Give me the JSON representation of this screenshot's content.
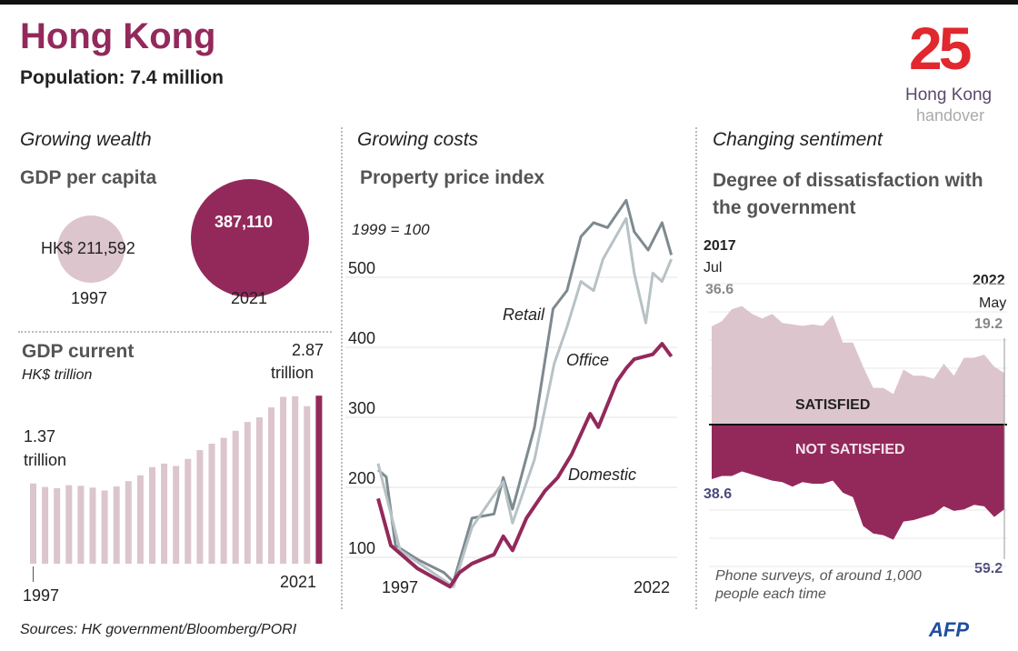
{
  "header": {
    "title": "Hong Kong",
    "subtitle": "Population: 7.4 million"
  },
  "logo": {
    "number": "25",
    "line1": "Hong Kong",
    "line2": "handover",
    "color": "#e0282e"
  },
  "colors": {
    "accent": "#93295b",
    "light": "#dcc5cc",
    "retail": "#7d8a8f",
    "office": "#b7c2c5",
    "sat_label": "#888888",
    "dissat_label": "#4a4a7a"
  },
  "sections": {
    "wealth": "Growing wealth",
    "costs": "Growing costs",
    "sentiment": "Changing sentiment"
  },
  "gdp_per_capita": {
    "heading": "GDP per capita",
    "items": [
      {
        "year": "1997",
        "label": "HK$ 211,592",
        "value": 211592
      },
      {
        "year": "2021",
        "label": "387,110",
        "value": 387110
      }
    ]
  },
  "footer": {
    "sources": "Sources: HK government/Bloomberg/PORI",
    "brand": "AFP"
  },
  "chart_data": [
    {
      "type": "bar",
      "title": "GDP current",
      "subtitle": "HK$ trillion",
      "categories": [
        "1997",
        "1998",
        "1999",
        "2000",
        "2001",
        "2002",
        "2003",
        "2004",
        "2005",
        "2006",
        "2007",
        "2008",
        "2009",
        "2010",
        "2011",
        "2012",
        "2013",
        "2014",
        "2015",
        "2016",
        "2017",
        "2018",
        "2019",
        "2020",
        "2021"
      ],
      "values": [
        1.37,
        1.31,
        1.29,
        1.34,
        1.33,
        1.3,
        1.25,
        1.32,
        1.41,
        1.51,
        1.65,
        1.71,
        1.67,
        1.79,
        1.94,
        2.05,
        2.15,
        2.27,
        2.42,
        2.5,
        2.67,
        2.85,
        2.86,
        2.69,
        2.87
      ],
      "highlight": "2021",
      "annotations": {
        "first_value": "1.37",
        "first_unit": "trillion",
        "last_value": "2.87",
        "last_unit": "trillion"
      },
      "xticks": [
        "1997",
        "2021"
      ],
      "ylim": [
        0,
        3
      ]
    },
    {
      "type": "line",
      "title": "Property price index",
      "note": "1999 = 100",
      "yticks": [
        "100",
        "200",
        "300",
        "400",
        "500"
      ],
      "xticks": [
        "1997",
        "2022"
      ],
      "ylim": [
        0,
        600
      ],
      "grid": true,
      "series": [
        {
          "name": "Retail",
          "points": [
            [
              1997,
              225
            ],
            [
              1997.7,
              215
            ],
            [
              1998.5,
              117
            ],
            [
              2000.4,
              97
            ],
            [
              2002.7,
              78
            ],
            [
              2003.5,
              65
            ],
            [
              2005.1,
              156
            ],
            [
              2007,
              162
            ],
            [
              2007.8,
              214
            ],
            [
              2008.6,
              169
            ],
            [
              2010.5,
              286
            ],
            [
              2012.1,
              455
            ],
            [
              2013.3,
              481
            ],
            [
              2014.5,
              558
            ],
            [
              2015.6,
              578
            ],
            [
              2016.8,
              571
            ],
            [
              2018.4,
              610
            ],
            [
              2019.1,
              565
            ],
            [
              2020.3,
              539
            ],
            [
              2021.5,
              578
            ],
            [
              2022.3,
              532
            ]
          ]
        },
        {
          "name": "Office",
          "points": [
            [
              1997,
              234
            ],
            [
              1998.9,
              110
            ],
            [
              2003.5,
              58
            ],
            [
              2005.1,
              143
            ],
            [
              2007.8,
              208
            ],
            [
              2008.6,
              149
            ],
            [
              2010.5,
              240
            ],
            [
              2012.2,
              377
            ],
            [
              2013.3,
              429
            ],
            [
              2014.5,
              494
            ],
            [
              2015.6,
              481
            ],
            [
              2016.4,
              526
            ],
            [
              2018.4,
              584
            ],
            [
              2019.1,
              506
            ],
            [
              2020.1,
              435
            ],
            [
              2020.7,
              506
            ],
            [
              2021.5,
              494
            ],
            [
              2022.3,
              526
            ]
          ]
        },
        {
          "name": "Domestic",
          "points": [
            [
              1997,
              184
            ],
            [
              1998.1,
              117
            ],
            [
              2000.4,
              84
            ],
            [
              2003.2,
              58
            ],
            [
              2004,
              78
            ],
            [
              2005.1,
              91
            ],
            [
              2007,
              104
            ],
            [
              2007.8,
              130
            ],
            [
              2008.6,
              110
            ],
            [
              2009.8,
              156
            ],
            [
              2011.4,
              195
            ],
            [
              2012.5,
              214
            ],
            [
              2013.7,
              247
            ],
            [
              2015.3,
              305
            ],
            [
              2016,
              286
            ],
            [
              2017.6,
              351
            ],
            [
              2018.4,
              370
            ],
            [
              2019.1,
              383
            ],
            [
              2020.7,
              390
            ],
            [
              2021.5,
              405
            ],
            [
              2022.3,
              387
            ]
          ]
        }
      ]
    },
    {
      "type": "area",
      "title": "Degree of dissatisfaction with the government",
      "start": {
        "year": "2017",
        "month": "Jul"
      },
      "end": {
        "year": "2022",
        "month": "May"
      },
      "note": "Phone surveys, of around 1,000 people each time",
      "series": [
        {
          "name": "SATISFIED",
          "first_label": "36.6",
          "last_label": "19.2",
          "values": [
            36.6,
            38.5,
            43,
            44.2,
            41.3,
            39.6,
            41.3,
            37.9,
            37.4,
            36.8,
            37.4,
            36.8,
            40.8,
            30.6,
            30.6,
            21.6,
            13.7,
            13.7,
            11.4,
            20.5,
            18.2,
            18.2,
            17.1,
            22.7,
            18.2,
            24.9,
            24.9,
            26.1,
            21.6,
            19.2
          ]
        },
        {
          "name": "NOT SATISFIED",
          "first_label": "38.6",
          "last_label": "59.2",
          "values": [
            38.6,
            36.4,
            36.4,
            33.3,
            35.4,
            37.5,
            39.6,
            40.6,
            43.7,
            40.6,
            41.7,
            41.7,
            39.6,
            47.9,
            51.0,
            70.8,
            76.0,
            77.1,
            80.2,
            67.7,
            66.7,
            64.6,
            62.5,
            57.3,
            60.4,
            59.4,
            56.2,
            57.3,
            64.6,
            59.2
          ]
        }
      ]
    }
  ]
}
